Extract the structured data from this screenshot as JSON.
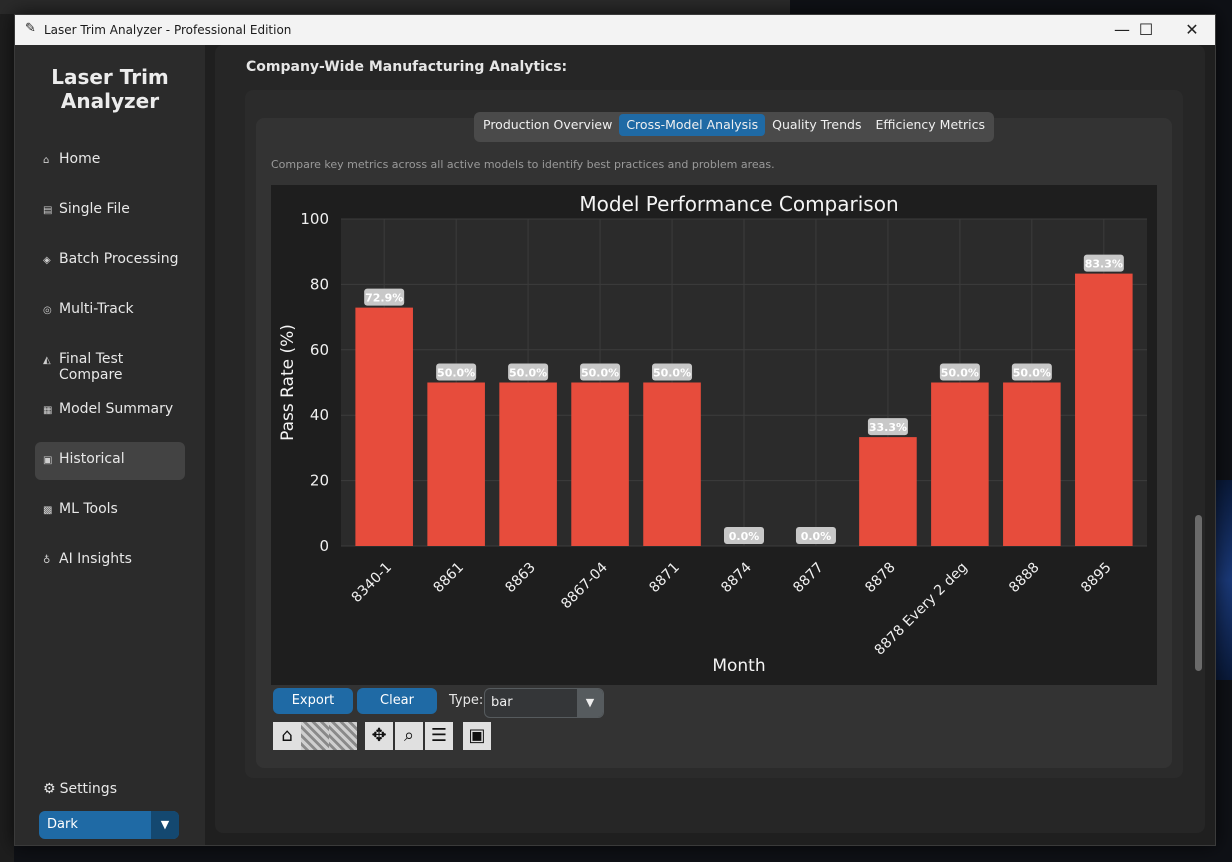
{
  "window": {
    "title": "Laser Trim Analyzer - Professional Edition",
    "minimize": "—",
    "maximize": "☐",
    "close": "✕"
  },
  "sidebar": {
    "brand": "Laser Trim\nAnalyzer",
    "items": [
      {
        "label": "Home",
        "icon": "home-icon",
        "glyph": "⌂"
      },
      {
        "label": "Single File",
        "icon": "file-icon",
        "glyph": "▤"
      },
      {
        "label": "Batch Processing",
        "icon": "batch-icon",
        "glyph": "◈"
      },
      {
        "label": "Multi-Track",
        "icon": "multitrack-icon",
        "glyph": "◎"
      },
      {
        "label": "Final Test Compare",
        "icon": "compare-icon",
        "glyph": "◭"
      },
      {
        "label": "Model Summary",
        "icon": "summary-icon",
        "glyph": "▦"
      },
      {
        "label": "Historical",
        "icon": "historical-icon",
        "glyph": "▣",
        "active": true
      },
      {
        "label": "ML Tools",
        "icon": "ml-icon",
        "glyph": "▩"
      },
      {
        "label": "AI Insights",
        "icon": "ai-icon",
        "glyph": "♁"
      }
    ],
    "settings": "Settings",
    "appearance": "Dark"
  },
  "main": {
    "section_title": "Company-Wide Manufacturing Analytics:",
    "tabs": [
      "Production Overview",
      "Cross-Model Analysis",
      "Quality Trends",
      "Efficiency Metrics"
    ],
    "selected_tab": 1,
    "description": "Compare key metrics across all active models to identify best practices and problem areas.",
    "controls": {
      "export": "Export",
      "clear": "Clear",
      "type_label": "Type:",
      "type_value": "bar"
    }
  },
  "chart_data": {
    "type": "bar",
    "title": "Model Performance Comparison",
    "xlabel": "Month",
    "ylabel": "Pass Rate (%)",
    "categories": [
      "8340-1",
      "8861",
      "8863",
      "8867-04",
      "8871",
      "8874",
      "8877",
      "8878",
      "8878 Every 2 deg",
      "8888",
      "8895"
    ],
    "values": [
      72.9,
      50.0,
      50.0,
      50.0,
      50.0,
      0.0,
      0.0,
      33.3,
      50.0,
      50.0,
      83.3
    ],
    "data_labels": [
      "72.9%",
      "50.0%",
      "50.0%",
      "50.0%",
      "50.0%",
      "0.0%",
      "0.0%",
      "33.3%",
      "50.0%",
      "50.0%",
      "83.3%"
    ],
    "ylim": [
      0,
      100
    ],
    "yticks": [
      0,
      20,
      40,
      60,
      80,
      100
    ],
    "grid": true,
    "bar_color": "#e74c3c",
    "background": "#2b2b2b"
  }
}
